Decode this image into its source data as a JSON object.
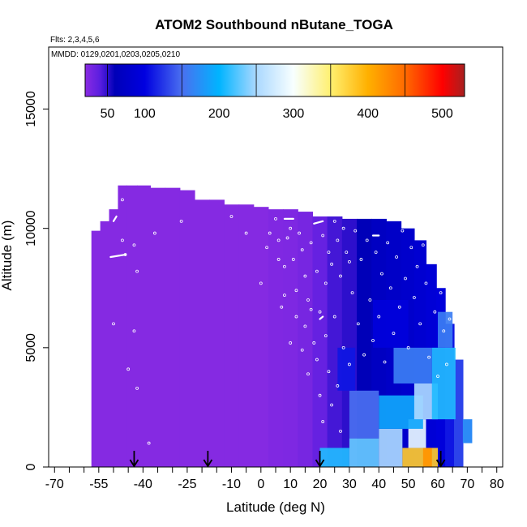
{
  "chart_data": {
    "type": "heatmap",
    "title": "ATOM2 Southbound nButane_TOGA",
    "subtitle_flights": "Flts: 2,3,4,5,6",
    "subtitle_dates": "MMDD: 0129,0201,0203,0205,0210",
    "xlabel": "Latitude (deg N)",
    "ylabel": "Altitude (m)",
    "xlim": [
      -72,
      82
    ],
    "ylim": [
      0,
      17600
    ],
    "x_ticks": [
      -70,
      -55,
      -40,
      -25,
      -10,
      0,
      10,
      20,
      30,
      40,
      50,
      60,
      70,
      80
    ],
    "x_tick_labels": [
      "-70",
      "-55",
      "-40",
      "-25",
      "-10",
      "0",
      "10",
      "20",
      "30",
      "40",
      "50",
      "60",
      "70",
      "80"
    ],
    "x_minor_ticks": [
      -65,
      -60,
      -50,
      -45,
      -35,
      -30,
      -20,
      -15,
      -5,
      5,
      15,
      25,
      35,
      45,
      55,
      65,
      75
    ],
    "y_ticks": [
      0,
      5000,
      10000,
      15000
    ],
    "y_tick_labels": [
      "0",
      "5000",
      "10000",
      "15000"
    ],
    "colorbar": {
      "range": [
        20,
        530
      ],
      "tick_values": [
        50,
        100,
        200,
        300,
        400,
        500
      ],
      "tick_labels": [
        "50",
        "100",
        "200",
        "300",
        "400",
        "500"
      ],
      "divider_values": [
        50,
        150,
        250,
        350,
        450
      ],
      "stops": [
        {
          "v": 20,
          "c": "#8a2be2"
        },
        {
          "v": 40,
          "c": "#5a1ee0"
        },
        {
          "v": 60,
          "c": "#0000b8"
        },
        {
          "v": 100,
          "c": "#0000e0"
        },
        {
          "v": 150,
          "c": "#4a6ff0"
        },
        {
          "v": 200,
          "c": "#00b4ff"
        },
        {
          "v": 250,
          "c": "#aad8ff"
        },
        {
          "v": 300,
          "c": "#f8ffff"
        },
        {
          "v": 350,
          "c": "#fff070"
        },
        {
          "v": 400,
          "c": "#ffb000"
        },
        {
          "v": 450,
          "c": "#ff6a00"
        },
        {
          "v": 500,
          "c": "#ff0000"
        },
        {
          "v": 530,
          "c": "#a82020"
        }
      ]
    },
    "curtain_columns": [
      {
        "lat": -56,
        "zmin": 0,
        "zmax": 9900,
        "v": 22
      },
      {
        "lat": -53,
        "zmin": 0,
        "zmax": 10300,
        "v": 22
      },
      {
        "lat": -50,
        "zmin": 0,
        "zmax": 10800,
        "v": 22
      },
      {
        "lat": -47,
        "zmin": 0,
        "zmax": 11800,
        "v": 22
      },
      {
        "lat": -44,
        "zmin": 0,
        "zmax": 11800,
        "v": 22
      },
      {
        "lat": -40,
        "zmin": 0,
        "zmax": 11800,
        "v": 22
      },
      {
        "lat": -35,
        "zmin": 0,
        "zmax": 11700,
        "v": 22
      },
      {
        "lat": -30,
        "zmin": 0,
        "zmax": 11700,
        "v": 22
      },
      {
        "lat": -25,
        "zmin": 0,
        "zmax": 11600,
        "v": 22
      },
      {
        "lat": -20,
        "zmin": 0,
        "zmax": 11200,
        "v": 22
      },
      {
        "lat": -15,
        "zmin": 0,
        "zmax": 11200,
        "v": 22
      },
      {
        "lat": -10,
        "zmin": 0,
        "zmax": 11000,
        "v": 22
      },
      {
        "lat": -5,
        "zmin": 0,
        "zmax": 11000,
        "v": 22
      },
      {
        "lat": 0,
        "zmin": 0,
        "zmax": 10900,
        "v": 22
      },
      {
        "lat": 5,
        "zmin": 0,
        "zmax": 10800,
        "v": 24
      },
      {
        "lat": 10,
        "zmin": 0,
        "zmax": 10800,
        "v": 25
      },
      {
        "lat": 15,
        "zmin": 0,
        "zmax": 10700,
        "v": 28
      },
      {
        "lat": 20,
        "zmin": 0,
        "zmax": 10500,
        "v": 35
      },
      {
        "lat": 25,
        "zmin": 0,
        "zmax": 10500,
        "v": 45
      },
      {
        "lat": 30,
        "zmin": 0,
        "zmax": 10400,
        "v": 50
      },
      {
        "lat": 35,
        "zmin": 0,
        "zmax": 10400,
        "v": 60
      },
      {
        "lat": 40,
        "zmin": 0,
        "zmax": 10400,
        "v": 70
      },
      {
        "lat": 45,
        "zmin": 0,
        "zmax": 10300,
        "v": 75
      },
      {
        "lat": 50,
        "zmin": 0,
        "zmax": 10000,
        "v": 80
      },
      {
        "lat": 54,
        "zmin": 0,
        "zmax": 9500,
        "v": 85
      },
      {
        "lat": 58,
        "zmin": 0,
        "zmax": 8500,
        "v": 90
      },
      {
        "lat": 61,
        "zmin": 0,
        "zmax": 7500,
        "v": 95
      },
      {
        "lat": 64,
        "zmin": 0,
        "zmax": 6000,
        "v": 110
      },
      {
        "lat": 67,
        "zmin": 0,
        "zmax": 4500,
        "v": 130
      },
      {
        "lat": 70,
        "zmin": 1000,
        "zmax": 2000,
        "v": 170
      }
    ],
    "enhancement_patches": [
      {
        "lat0": 20,
        "lat1": 30,
        "z0": 0,
        "z1": 800,
        "v": 210
      },
      {
        "lat0": 30,
        "lat1": 40,
        "z0": 0,
        "z1": 1200,
        "v": 230
      },
      {
        "lat0": 40,
        "lat1": 48,
        "z0": 0,
        "z1": 1600,
        "v": 250
      },
      {
        "lat0": 48,
        "lat1": 60,
        "z0": 0,
        "z1": 800,
        "v": 380
      },
      {
        "lat0": 50,
        "lat1": 56,
        "z0": 800,
        "z1": 2000,
        "v": 290
      },
      {
        "lat0": 40,
        "lat1": 55,
        "z0": 1600,
        "z1": 3000,
        "v": 190
      },
      {
        "lat0": 52,
        "lat1": 60,
        "z0": 2000,
        "z1": 3500,
        "v": 250
      },
      {
        "lat0": 45,
        "lat1": 58,
        "z0": 3500,
        "z1": 5000,
        "v": 160
      },
      {
        "lat0": 58,
        "lat1": 66,
        "z0": 2000,
        "z1": 5000,
        "v": 210
      },
      {
        "lat0": 60,
        "lat1": 65,
        "z0": 5000,
        "z1": 6500,
        "v": 160
      },
      {
        "lat0": 38,
        "lat1": 50,
        "z0": 5000,
        "z1": 7000,
        "v": 95
      },
      {
        "lat0": 30,
        "lat1": 40,
        "z0": 1200,
        "z1": 3200,
        "v": 150
      },
      {
        "lat0": 26,
        "lat1": 32,
        "z0": 3200,
        "z1": 5000,
        "v": 110
      },
      {
        "lat0": 55,
        "lat1": 58,
        "z0": 0,
        "z1": 800,
        "v": 420
      }
    ],
    "arrow_lats": [
      -43,
      -18,
      20,
      61
    ],
    "sample_points": [
      {
        "lat": -47,
        "alt": 11200
      },
      {
        "lat": -47,
        "alt": 9500
      },
      {
        "lat": -46,
        "alt": 8900
      },
      {
        "lat": -43,
        "alt": 9300
      },
      {
        "lat": -42,
        "alt": 8200
      },
      {
        "lat": -43,
        "alt": 5700
      },
      {
        "lat": -50,
        "alt": 6000
      },
      {
        "lat": -45,
        "alt": 4100
      },
      {
        "lat": -42,
        "alt": 3300
      },
      {
        "lat": -38,
        "alt": 1000
      },
      {
        "lat": -36,
        "alt": 9800
      },
      {
        "lat": -27,
        "alt": 10300
      },
      {
        "lat": -10,
        "alt": 10500
      },
      {
        "lat": -5,
        "alt": 9800
      },
      {
        "lat": 2,
        "alt": 9200
      },
      {
        "lat": 0,
        "alt": 7700
      },
      {
        "lat": 3,
        "alt": 9800
      },
      {
        "lat": 5,
        "alt": 10400
      },
      {
        "lat": 6,
        "alt": 9500
      },
      {
        "lat": 6,
        "alt": 8700
      },
      {
        "lat": 8,
        "alt": 8400
      },
      {
        "lat": 8,
        "alt": 7200
      },
      {
        "lat": 7,
        "alt": 6700
      },
      {
        "lat": 9,
        "alt": 9600
      },
      {
        "lat": 10,
        "alt": 10000
      },
      {
        "lat": 10,
        "alt": 5200
      },
      {
        "lat": 11,
        "alt": 8700
      },
      {
        "lat": 12,
        "alt": 7400
      },
      {
        "lat": 12,
        "alt": 6300
      },
      {
        "lat": 13,
        "alt": 9800
      },
      {
        "lat": 14,
        "alt": 9100
      },
      {
        "lat": 14,
        "alt": 4900
      },
      {
        "lat": 15,
        "alt": 8000
      },
      {
        "lat": 15,
        "alt": 5900
      },
      {
        "lat": 16,
        "alt": 7000
      },
      {
        "lat": 16,
        "alt": 3900
      },
      {
        "lat": 17,
        "alt": 9400
      },
      {
        "lat": 17,
        "alt": 6600
      },
      {
        "lat": 18,
        "alt": 5200
      },
      {
        "lat": 19,
        "alt": 8200
      },
      {
        "lat": 19,
        "alt": 4500
      },
      {
        "lat": 20,
        "alt": 6500
      },
      {
        "lat": 20,
        "alt": 3000
      },
      {
        "lat": 21,
        "alt": 9700
      },
      {
        "lat": 21,
        "alt": 1900
      },
      {
        "lat": 22,
        "alt": 7700
      },
      {
        "lat": 22,
        "alt": 5500
      },
      {
        "lat": 23,
        "alt": 9000
      },
      {
        "lat": 23,
        "alt": 4000
      },
      {
        "lat": 24,
        "alt": 8500
      },
      {
        "lat": 24,
        "alt": 2600
      },
      {
        "lat": 25,
        "alt": 10300
      },
      {
        "lat": 25,
        "alt": 6300
      },
      {
        "lat": 26,
        "alt": 9500
      },
      {
        "lat": 26,
        "alt": 3400
      },
      {
        "lat": 27,
        "alt": 8000
      },
      {
        "lat": 27,
        "alt": 1500
      },
      {
        "lat": 28,
        "alt": 10000
      },
      {
        "lat": 28,
        "alt": 5000
      },
      {
        "lat": 29,
        "alt": 9000
      },
      {
        "lat": 30,
        "alt": 8600
      },
      {
        "lat": 30,
        "alt": 4300
      },
      {
        "lat": 31,
        "alt": 7300
      },
      {
        "lat": 32,
        "alt": 9900
      },
      {
        "lat": 33,
        "alt": 6000
      },
      {
        "lat": 34,
        "alt": 8700
      },
      {
        "lat": 35,
        "alt": 4700
      },
      {
        "lat": 36,
        "alt": 9500
      },
      {
        "lat": 37,
        "alt": 7000
      },
      {
        "lat": 38,
        "alt": 5300
      },
      {
        "lat": 39,
        "alt": 9000
      },
      {
        "lat": 40,
        "alt": 6300
      },
      {
        "lat": 41,
        "alt": 8100
      },
      {
        "lat": 42,
        "alt": 4400
      },
      {
        "lat": 43,
        "alt": 9400
      },
      {
        "lat": 44,
        "alt": 7500
      },
      {
        "lat": 45,
        "alt": 5600
      },
      {
        "lat": 46,
        "alt": 8800
      },
      {
        "lat": 47,
        "alt": 6700
      },
      {
        "lat": 48,
        "alt": 9900
      },
      {
        "lat": 49,
        "alt": 7900
      },
      {
        "lat": 50,
        "alt": 5000
      },
      {
        "lat": 51,
        "alt": 9200
      },
      {
        "lat": 52,
        "alt": 7100
      },
      {
        "lat": 53,
        "alt": 8400
      },
      {
        "lat": 54,
        "alt": 6000
      },
      {
        "lat": 55,
        "alt": 9300
      },
      {
        "lat": 56,
        "alt": 7700
      },
      {
        "lat": 57,
        "alt": 4600
      },
      {
        "lat": 58,
        "alt": 8800
      },
      {
        "lat": 59,
        "alt": 6500
      },
      {
        "lat": 60,
        "alt": 3800
      },
      {
        "lat": 61,
        "alt": 7300
      },
      {
        "lat": 62,
        "alt": 5700
      },
      {
        "lat": 63,
        "alt": 4300
      },
      {
        "lat": 64,
        "alt": 6200
      }
    ],
    "sample_tracks": [
      {
        "lat0": -51,
        "alt0": 8800,
        "lat1": -46,
        "alt1": 8900
      },
      {
        "lat0": -50,
        "alt0": 10300,
        "lat1": -49,
        "alt1": 10500
      },
      {
        "lat0": 18,
        "alt0": 10200,
        "lat1": 21,
        "alt1": 10300
      },
      {
        "lat0": 38,
        "alt0": 9700,
        "lat1": 40,
        "alt1": 9700
      },
      {
        "lat0": 55,
        "alt0": 9800,
        "lat1": 58,
        "alt1": 9500
      },
      {
        "lat0": 20,
        "alt0": 6200,
        "lat1": 21,
        "alt1": 6300
      },
      {
        "lat0": 8,
        "alt0": 10400,
        "lat1": 11,
        "alt1": 10400
      }
    ]
  }
}
